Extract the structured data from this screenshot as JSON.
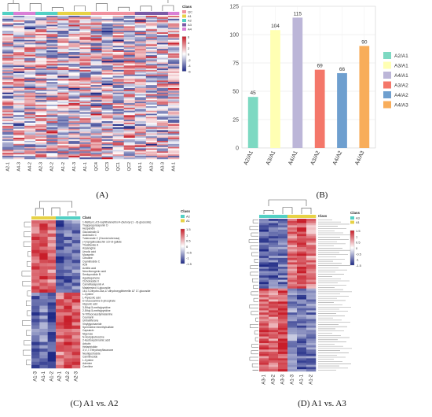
{
  "captions": {
    "a": "(A)",
    "b": "(B)",
    "c": "(C) A1 vs. A2",
    "d": "(D) A1 vs. A3"
  },
  "colors": {
    "low": "#1f2a86",
    "mid": "#ffffff",
    "high": "#c81e2a",
    "a1": "#e7d246",
    "a2": "#53d0c4",
    "a3": "#7a5aa6",
    "a4": "#d97fd6",
    "qc": "#f0919e"
  },
  "panel_a": {
    "legend_title": "Class",
    "legend_items": [
      "QC",
      "A1",
      "A2",
      "A3",
      "A4"
    ],
    "scale_labels": [
      "6",
      "4",
      "2",
      "0",
      "-2",
      "-4",
      "-6"
    ],
    "columns": [
      "A2-1",
      "A4-3",
      "A4-2",
      "A2-3",
      "A2-2",
      "A1-2",
      "A1-3",
      "A1-1",
      "QC4",
      "QC3",
      "QC1",
      "QC2",
      "A3-1",
      "A3-2",
      "A3-3",
      "A4-1"
    ]
  },
  "chart_data": {
    "type": "bar",
    "title": "",
    "xlabel": "",
    "ylabel": "",
    "ylim": [
      0,
      125
    ],
    "yticks": [
      0,
      25,
      50,
      75,
      100,
      125
    ],
    "grid": true,
    "legend_position": "right",
    "categories": [
      "A2/A1",
      "A3/A1",
      "A4/A1",
      "A3/A2",
      "A4/A2",
      "A4/A3"
    ],
    "values": [
      45,
      104,
      115,
      69,
      66,
      90
    ],
    "colors": [
      "#7dd9c2",
      "#ffffb3",
      "#bcb6d8",
      "#f4776a",
      "#6e9fcf",
      "#f8ad5a"
    ]
  },
  "panel_c": {
    "legend_title": "Class",
    "legend_items": [
      "A2",
      "A1"
    ],
    "scale_labels": [
      "1.5",
      "1",
      "0.5",
      "0",
      "-0.5",
      "-1",
      "-1.5"
    ],
    "columns": [
      "A1-3",
      "A1-1",
      "A1-2",
      "A2-1",
      "A2-2",
      "A2-3"
    ],
    "rows": [
      "1-Methyl-1,4,5-naphthalenetriol 4-(butoxyl-(1→6)-glucoside)",
      "Tragopogonsaponin D",
      "Hesperidin",
      "Glucosinolin D",
      "Arabinolin C",
      "Tuberonate C (Oxonia tuberosa)",
      "(+)-Epigallocatechin 3,5'-di-gallate",
      "Theaflavate A",
      "Asparagine",
      "Ursolic acid",
      "Moracetin",
      "Citrulline",
      "Cyanidioside C",
      "AzN",
      "Achillic acid",
      "Neochlorogenic acid",
      "Senkyunolide B",
      "Agastaquinone",
      "Cichoriaside II",
      "Camelliasaponin A",
      "Matairesinol 4-glucoside",
      "16,17-Dihydro-16a,17-dihydroxygibberellin A7 17-glucoside",
      "L-Cystine",
      "L-Pipecolic acid",
      "D-Glucosamine 6-phosphate",
      "Hippuric acid",
      "3-Ethyl-5-methylpyridine",
      "2-Ethyl-5-methylpyridine",
      "N-Trifluoroacetylmelamine",
      "Coumarin",
      "Umbelliferone",
      "Vinylglycinamide",
      "Spermidine trimethylsulfate",
      "Capsaicin",
      "Nigerose",
      "N-Acetylputrescine",
      "2-Hydroxycinnamic acid",
      "Arbutin",
      "Heliantriolide",
      "3',4',7-Trihydroxyflavanone",
      "Neoligustroside",
      "Carnitinoside",
      "L-Cystine",
      "Adenine",
      "Carnitine"
    ]
  },
  "panel_d": {
    "legend_title": "Class",
    "legend_items": [
      "A3",
      "A1"
    ],
    "scale_labels": [
      "1.5",
      "1",
      "0.5",
      "0",
      "-0.5",
      "-1",
      "-1.5"
    ],
    "columns": [
      "A3-1",
      "A3-2",
      "A3-3",
      "A1-3",
      "A1-1",
      "A1-2"
    ]
  }
}
